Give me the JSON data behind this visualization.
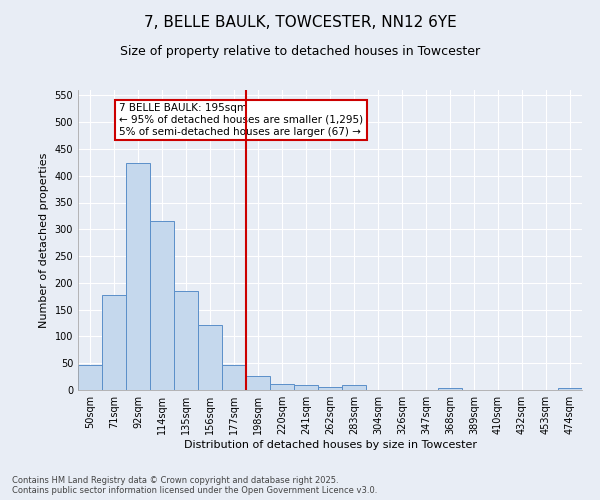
{
  "title": "7, BELLE BAULK, TOWCESTER, NN12 6YE",
  "subtitle": "Size of property relative to detached houses in Towcester",
  "xlabel": "Distribution of detached houses by size in Towcester",
  "ylabel": "Number of detached properties",
  "categories": [
    "50sqm",
    "71sqm",
    "92sqm",
    "114sqm",
    "135sqm",
    "156sqm",
    "177sqm",
    "198sqm",
    "220sqm",
    "241sqm",
    "262sqm",
    "283sqm",
    "304sqm",
    "326sqm",
    "347sqm",
    "368sqm",
    "389sqm",
    "410sqm",
    "432sqm",
    "453sqm",
    "474sqm"
  ],
  "values": [
    46,
    177,
    424,
    315,
    185,
    122,
    46,
    26,
    12,
    10,
    6,
    10,
    0,
    0,
    0,
    4,
    0,
    0,
    0,
    0,
    4
  ],
  "bar_color": "#c5d8ed",
  "bar_edge_color": "#5b8fc9",
  "marker_label": "7 BELLE BAULK: 195sqm",
  "annotation_line1": "← 95% of detached houses are smaller (1,295)",
  "annotation_line2": "5% of semi-detached houses are larger (67) →",
  "annotation_box_color": "#ffffff",
  "annotation_box_edge_color": "#cc0000",
  "vline_color": "#cc0000",
  "vline_index": 7,
  "ylim": [
    0,
    560
  ],
  "yticks": [
    0,
    50,
    100,
    150,
    200,
    250,
    300,
    350,
    400,
    450,
    500,
    550
  ],
  "background_color": "#e8edf5",
  "footer_line1": "Contains HM Land Registry data © Crown copyright and database right 2025.",
  "footer_line2": "Contains public sector information licensed under the Open Government Licence v3.0.",
  "title_fontsize": 11,
  "subtitle_fontsize": 9,
  "tick_fontsize": 7,
  "label_fontsize": 8,
  "footer_fontsize": 6,
  "annotation_fontsize": 7.5
}
